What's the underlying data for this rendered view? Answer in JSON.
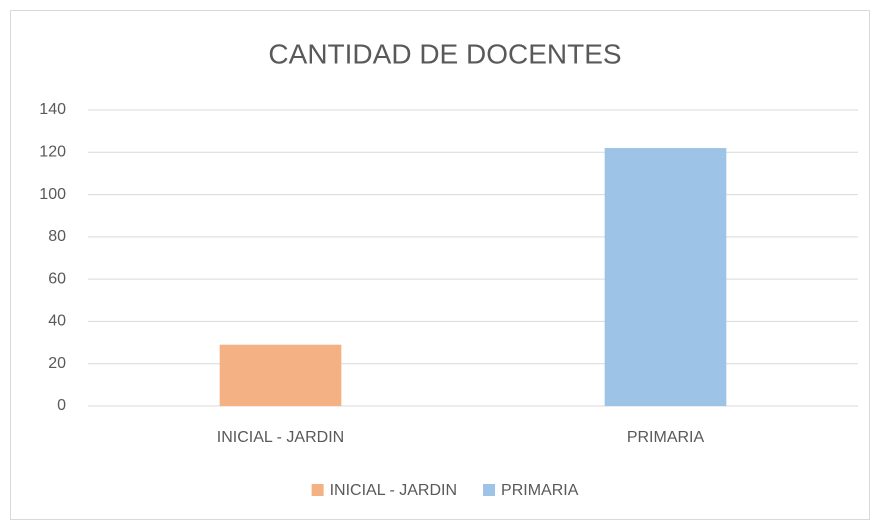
{
  "chart_data": {
    "type": "bar",
    "title": "CANTIDAD DE DOCENTES",
    "categories": [
      "INICIAL - JARDIN",
      "PRIMARIA"
    ],
    "values": [
      29,
      122
    ],
    "colors": [
      "#f4b183",
      "#9dc3e6"
    ],
    "ylim": [
      0,
      140
    ],
    "yticks": [
      0,
      20,
      40,
      60,
      80,
      100,
      120,
      140
    ],
    "grid": true,
    "legend": "bottom"
  }
}
